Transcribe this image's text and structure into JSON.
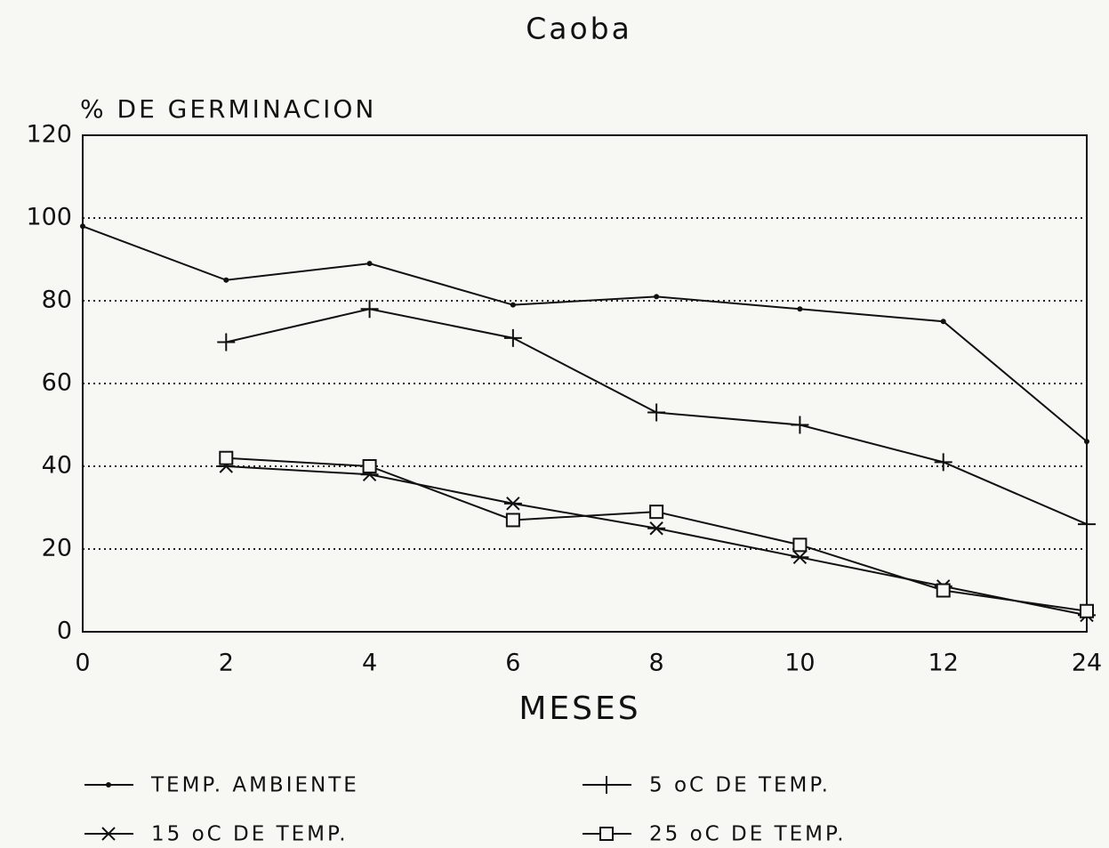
{
  "chart_data": {
    "type": "line",
    "title": "Caoba",
    "ylabel": "% DE GERMINACION",
    "xlabel": "MESES",
    "categories": [
      "0",
      "2",
      "4",
      "6",
      "8",
      "10",
      "12",
      "24"
    ],
    "ylim": [
      0,
      120
    ],
    "yticks": [
      0,
      20,
      40,
      60,
      80,
      100,
      120
    ],
    "grid": true,
    "series": [
      {
        "name": "TEMP. AMBIENTE",
        "color": "#111111",
        "marker": "dot",
        "values": [
          98,
          85,
          89,
          79,
          81,
          78,
          75,
          46
        ]
      },
      {
        "name": "5 oC DE TEMP.",
        "color": "#111111",
        "marker": "plus",
        "values": [
          null,
          70,
          78,
          71,
          53,
          50,
          41,
          26
        ]
      },
      {
        "name": "15 oC DE TEMP.",
        "color": "#111111",
        "marker": "star",
        "values": [
          null,
          40,
          38,
          31,
          25,
          18,
          11,
          4
        ]
      },
      {
        "name": "25 oC DE TEMP.",
        "color": "#111111",
        "marker": "square",
        "values": [
          null,
          42,
          40,
          27,
          29,
          21,
          10,
          5
        ]
      }
    ]
  }
}
